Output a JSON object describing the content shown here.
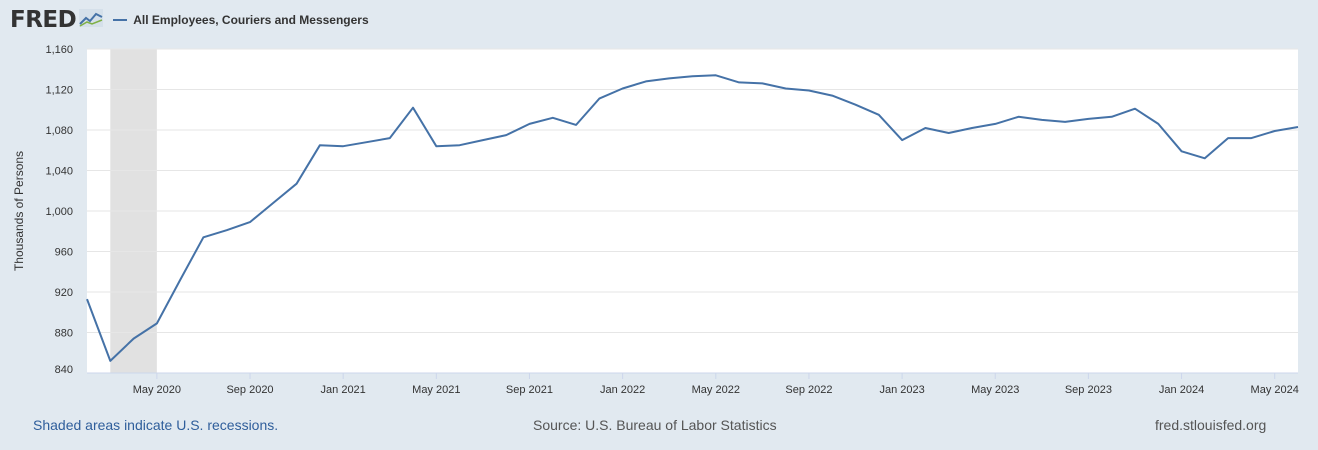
{
  "header": {
    "logo_text": "FRED",
    "logo_icon": "fred-chart-icon",
    "legend_label": "All Employees, Couriers and Messengers"
  },
  "footer": {
    "recession_note": "Shaded areas indicate U.S. recessions.",
    "source": "Source: U.S. Bureau of Labor Statistics",
    "site": "fred.stlouisfed.org"
  },
  "colors": {
    "series": "#4572a7",
    "recession": "#e1e1e1",
    "background": "#e1e9f0",
    "plot": "#ffffff",
    "grid": "#e6e6e6"
  },
  "chart_data": {
    "type": "line",
    "ylabel": "Thousands of Persons",
    "ylim": [
      840,
      1160
    ],
    "yticks": [
      840,
      880,
      920,
      960,
      1000,
      1040,
      1080,
      1120,
      1160
    ],
    "ytick_labels": [
      "840",
      "880",
      "920",
      "960",
      "1,000",
      "1,040",
      "1,080",
      "1,120",
      "1,160"
    ],
    "xlim": [
      "2020-02",
      "2024-06"
    ],
    "xticks": [
      "2020-05",
      "2020-09",
      "2021-01",
      "2021-05",
      "2021-09",
      "2022-01",
      "2022-05",
      "2022-09",
      "2023-01",
      "2023-05",
      "2023-09",
      "2024-01",
      "2024-05"
    ],
    "xtick_labels": [
      "May 2020",
      "Sep 2020",
      "Jan 2021",
      "May 2021",
      "Sep 2021",
      "Jan 2022",
      "May 2022",
      "Sep 2022",
      "Jan 2023",
      "May 2023",
      "Sep 2023",
      "Jan 2024",
      "May 2024"
    ],
    "recessions": [
      [
        "2020-03",
        "2020-05"
      ]
    ],
    "grid": true,
    "legend": "top-left",
    "series": [
      {
        "name": "All Employees, Couriers and Messengers",
        "x": [
          "2020-02",
          "2020-03",
          "2020-04",
          "2020-05",
          "2020-06",
          "2020-07",
          "2020-08",
          "2020-09",
          "2020-10",
          "2020-11",
          "2020-12",
          "2021-01",
          "2021-02",
          "2021-03",
          "2021-04",
          "2021-05",
          "2021-06",
          "2021-07",
          "2021-08",
          "2021-09",
          "2021-10",
          "2021-11",
          "2021-12",
          "2022-01",
          "2022-02",
          "2022-03",
          "2022-04",
          "2022-05",
          "2022-06",
          "2022-07",
          "2022-08",
          "2022-09",
          "2022-10",
          "2022-11",
          "2022-12",
          "2023-01",
          "2023-02",
          "2023-03",
          "2023-04",
          "2023-05",
          "2023-06",
          "2023-07",
          "2023-08",
          "2023-09",
          "2023-10",
          "2023-11",
          "2023-12",
          "2024-01",
          "2024-02",
          "2024-03",
          "2024-04",
          "2024-05",
          "2024-06"
        ],
        "values": [
          913,
          852,
          874,
          889,
          932,
          974,
          981,
          989,
          1008,
          1027,
          1065,
          1064,
          1068,
          1072,
          1102,
          1064,
          1065,
          1070,
          1075,
          1086,
          1092,
          1085,
          1111,
          1121,
          1128,
          1131,
          1133,
          1134,
          1127,
          1126,
          1121,
          1119,
          1114,
          1105,
          1095,
          1070,
          1082,
          1077,
          1082,
          1086,
          1093,
          1090,
          1088,
          1091,
          1093,
          1101,
          1086,
          1059,
          1052,
          1072,
          1072,
          1079,
          1083
        ]
      }
    ]
  }
}
